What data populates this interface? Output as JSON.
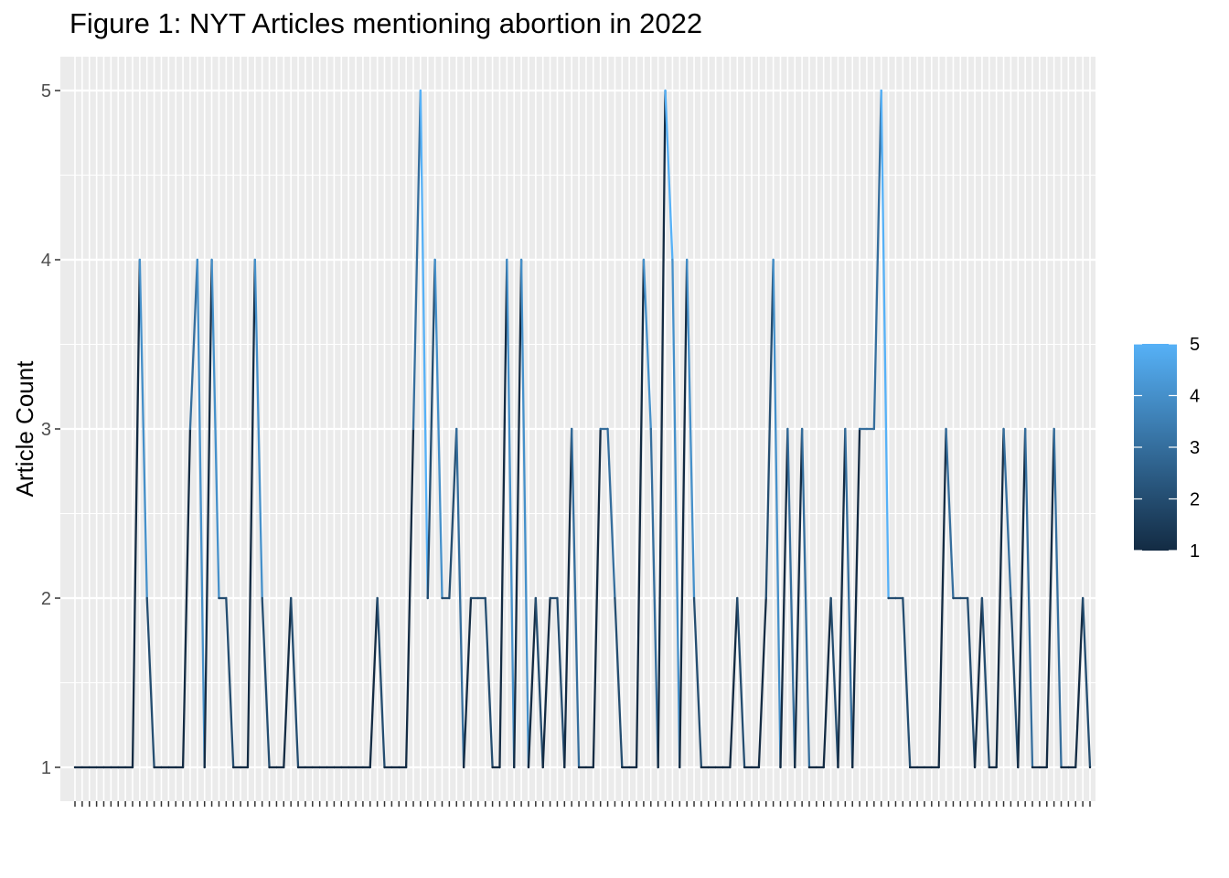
{
  "chart_data": {
    "type": "line",
    "title": "Figure 1: NYT Articles mentioning abortion in 2022",
    "xlabel": "",
    "ylabel": "Article Count",
    "ylim": [
      1,
      5
    ],
    "y_ticks": [
      1,
      2,
      3,
      4,
      5
    ],
    "x_tick_labels_note": "x-axis category labels are overprinted and illegible",
    "values": [
      1,
      1,
      1,
      1,
      1,
      1,
      1,
      1,
      1,
      4,
      2,
      1,
      1,
      1,
      1,
      1,
      3,
      4,
      1,
      4,
      2,
      2,
      1,
      1,
      1,
      4,
      2,
      1,
      1,
      1,
      2,
      1,
      1,
      1,
      1,
      1,
      1,
      1,
      1,
      1,
      1,
      1,
      2,
      1,
      1,
      1,
      1,
      3,
      5,
      2,
      4,
      2,
      2,
      3,
      1,
      2,
      2,
      2,
      1,
      1,
      4,
      1,
      4,
      1,
      2,
      1,
      2,
      2,
      1,
      3,
      1,
      1,
      1,
      3,
      3,
      2,
      1,
      1,
      1,
      4,
      3,
      1,
      5,
      4,
      1,
      4,
      2,
      1,
      1,
      1,
      1,
      1,
      2,
      1,
      1,
      1,
      2,
      4,
      1,
      3,
      1,
      3,
      1,
      1,
      1,
      2,
      1,
      3,
      1,
      3,
      3,
      3,
      5,
      2,
      2,
      2,
      1,
      1,
      1,
      1,
      1,
      3,
      2,
      2,
      2,
      1,
      2,
      1,
      1,
      3,
      2,
      1,
      3,
      1,
      1,
      1,
      3,
      1,
      1,
      1,
      2,
      1
    ],
    "color_scale": {
      "label_values": [
        1,
        2,
        3,
        4,
        5
      ],
      "low_color": "#132B43",
      "high_color": "#56B1F7"
    },
    "panel_background": "#ebebeb",
    "grid": true,
    "legend_position": "right"
  }
}
